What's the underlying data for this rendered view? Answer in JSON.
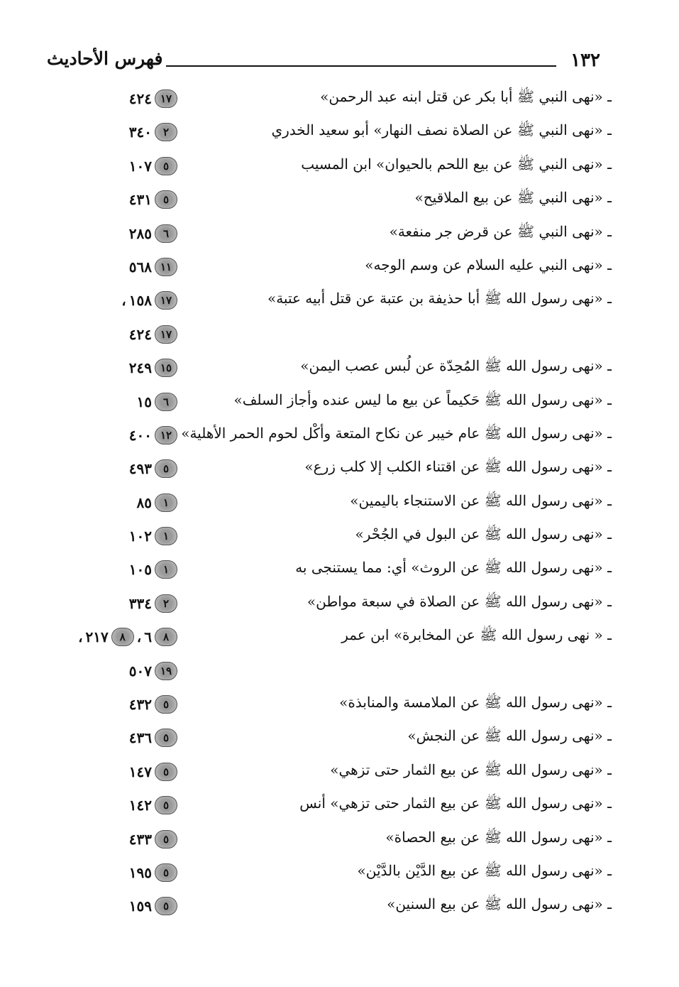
{
  "header": {
    "page_number": "١٣٢",
    "title": "فهرس الأحاديث"
  },
  "rows": [
    {
      "text": "ـ «نهى النبي ﷺ أبا بكر عن قتل ابنه عبد الرحمن»",
      "refs": [
        {
          "vol": "١٧",
          "page": "٤٢٤",
          "sep": ""
        }
      ]
    },
    {
      "text": "ـ «نهى النبي ﷺ عن الصلاة نصف النهار» أبو سعيد الخدري",
      "refs": [
        {
          "vol": "٢",
          "page": "٣٤٠",
          "sep": ""
        }
      ]
    },
    {
      "text": "ـ «نهى النبي ﷺ عن بيع اللحم بالحيوان» ابن المسيب",
      "refs": [
        {
          "vol": "٥",
          "page": "١٠٧",
          "sep": ""
        }
      ]
    },
    {
      "text": "ـ «نهى النبي ﷺ عن بيع الملاقيح»",
      "refs": [
        {
          "vol": "٥",
          "page": "٤٣١",
          "sep": ""
        }
      ]
    },
    {
      "text": "ـ «نهى النبي ﷺ عن قرض جر منفعة»",
      "refs": [
        {
          "vol": "٦",
          "page": "٢٨٥",
          "sep": ""
        }
      ]
    },
    {
      "text": "ـ «نهى النبي عليه السلام عن وسم الوجه»",
      "refs": [
        {
          "vol": "١١",
          "page": "٥٦٨",
          "sep": ""
        }
      ]
    },
    {
      "text": "ـ «نهى رسول الله ﷺ أبا حذيفة بن عتبة عن قتل أبيه عتبة»",
      "refs": [
        {
          "vol": "١٧",
          "page": "١٥٨",
          "sep": "،"
        }
      ]
    },
    {
      "text": "",
      "refs": [
        {
          "vol": "١٧",
          "page": "٤٢٤",
          "sep": ""
        }
      ]
    },
    {
      "text": "ـ «نهى رسول الله ﷺ المُحِدّة عن لُبس عصب اليمن»",
      "refs": [
        {
          "vol": "١٥",
          "page": "٢٤٩",
          "sep": ""
        }
      ]
    },
    {
      "text": "ـ «نهى رسول الله ﷺ حَكيماً عن بيع ما ليس عنده وأجاز السلف»",
      "refs": [
        {
          "vol": "٦",
          "page": "١٥",
          "sep": ""
        }
      ]
    },
    {
      "text": "ـ «نهى رسول الله ﷺ عام خيبر عن نكاح المتعة وأكْل لحوم الحمر الأهلية»",
      "refs": [
        {
          "vol": "١٢",
          "page": "٤٠٠",
          "sep": ""
        }
      ]
    },
    {
      "text": "ـ «نهى رسول الله ﷺ عن اقتناء الكلب إلا كلب زرع»",
      "refs": [
        {
          "vol": "٥",
          "page": "٤٩٣",
          "sep": ""
        }
      ]
    },
    {
      "text": "ـ «نهى رسول الله ﷺ عن الاستنجاء باليمين»",
      "refs": [
        {
          "vol": "١",
          "page": "٨٥",
          "sep": ""
        }
      ]
    },
    {
      "text": "ـ «نهى رسول الله ﷺ عن البول في الجُحْر»",
      "refs": [
        {
          "vol": "١",
          "page": "١٠٢",
          "sep": ""
        }
      ]
    },
    {
      "text": "ـ «نهى رسول الله ﷺ عن الروث» أي: مما يستنجى به",
      "refs": [
        {
          "vol": "١",
          "page": "١٠٥",
          "sep": ""
        }
      ]
    },
    {
      "text": "ـ «نهى رسول الله ﷺ عن الصلاة في سبعة مواطن»",
      "refs": [
        {
          "vol": "٢",
          "page": "٣٣٤",
          "sep": ""
        }
      ]
    },
    {
      "text": "ـ « نهى رسول الله ﷺ عن المخابرة» ابن عمر",
      "refs": [
        {
          "vol": "٨",
          "page": "٦",
          "sep": "،"
        },
        {
          "vol": "٨",
          "page": "٢١٧",
          "sep": "،"
        }
      ]
    },
    {
      "text": "",
      "refs": [
        {
          "vol": "١٩",
          "page": "٥٠٧",
          "sep": ""
        }
      ]
    },
    {
      "text": "ـ «نهى رسول الله ﷺ عن الملامسة والمنابذة»",
      "refs": [
        {
          "vol": "٥",
          "page": "٤٣٢",
          "sep": ""
        }
      ]
    },
    {
      "text": "ـ «نهى رسول الله ﷺ عن النجش»",
      "refs": [
        {
          "vol": "٥",
          "page": "٤٣٦",
          "sep": ""
        }
      ]
    },
    {
      "text": "ـ «نهى رسول الله ﷺ عن بيع الثمار حتى تزهي»",
      "refs": [
        {
          "vol": "٥",
          "page": "١٤٧",
          "sep": ""
        }
      ]
    },
    {
      "text": "ـ «نهى رسول الله ﷺ عن بيع الثمار حتى تزهي» أنس",
      "refs": [
        {
          "vol": "٥",
          "page": "١٤٢",
          "sep": ""
        }
      ]
    },
    {
      "text": "ـ «نهى رسول الله ﷺ عن بيع الحصاة»",
      "refs": [
        {
          "vol": "٥",
          "page": "٤٣٣",
          "sep": ""
        }
      ]
    },
    {
      "text": "ـ «نهى رسول الله ﷺ عن بيع الدَّيْن بالدَّيْن»",
      "refs": [
        {
          "vol": "٥",
          "page": "١٩٥",
          "sep": ""
        }
      ]
    },
    {
      "text": "ـ «نهى رسول الله ﷺ عن بيع السنين»",
      "refs": [
        {
          "vol": "٥",
          "page": "١٥٩",
          "sep": ""
        }
      ]
    }
  ]
}
